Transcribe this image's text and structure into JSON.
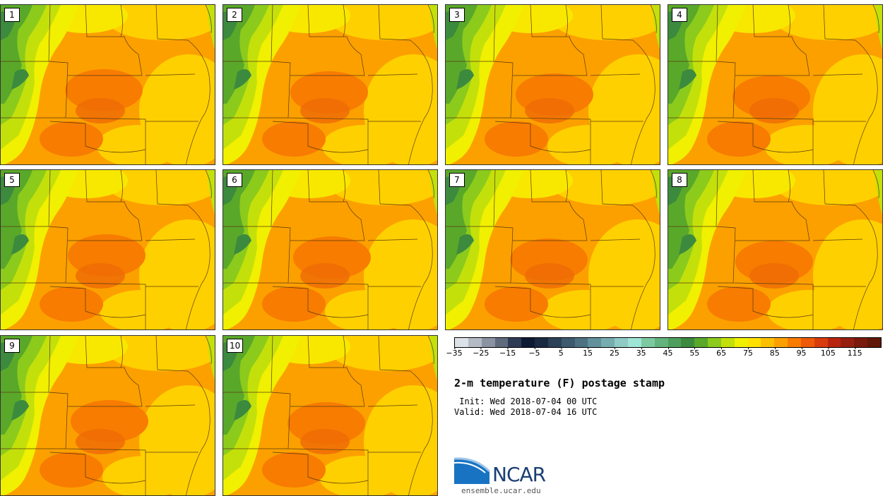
{
  "members": [
    {
      "label": "1",
      "variant": 0
    },
    {
      "label": "2",
      "variant": 1
    },
    {
      "label": "3",
      "variant": 2
    },
    {
      "label": "4",
      "variant": 3
    },
    {
      "label": "5",
      "variant": 4
    },
    {
      "label": "6",
      "variant": 5
    },
    {
      "label": "7",
      "variant": 6
    },
    {
      "label": "8",
      "variant": 7
    },
    {
      "label": "9",
      "variant": 8
    },
    {
      "label": "10",
      "variant": 9
    }
  ],
  "colorbar": {
    "colors": [
      "#dde2e8",
      "#b4bbc5",
      "#8a93a2",
      "#5f6a7d",
      "#2f3c55",
      "#0e1a33",
      "#1a2a40",
      "#2c4257",
      "#3e5a6e",
      "#4f7283",
      "#62919b",
      "#78adb0",
      "#8fcac5",
      "#9ee5d6",
      "#7dc9a0",
      "#62b47c",
      "#4e9f5d",
      "#3c8a3e",
      "#5aa82a",
      "#8ccb1c",
      "#c4e00a",
      "#f0f000",
      "#ffe000",
      "#fcc000",
      "#fca000",
      "#f77c00",
      "#ee5a0a",
      "#d93c0c",
      "#b8250e",
      "#962010",
      "#7a1a0c",
      "#601808"
    ],
    "tick_labels": [
      "−35",
      "−25",
      "−15",
      "−5",
      "5",
      "15",
      "25",
      "35",
      "45",
      "55",
      "65",
      "75",
      "85",
      "95",
      "105",
      "115"
    ],
    "range": [
      -35,
      125
    ]
  },
  "title": "2-m temperature (F) postage stamp",
  "init": " Init: Wed 2018-07-04 00 UTC",
  "valid": "Valid: Wed 2018-07-04 16 UTC",
  "logo_text": "NCAR",
  "site": "ensemble.ucar.edu"
}
